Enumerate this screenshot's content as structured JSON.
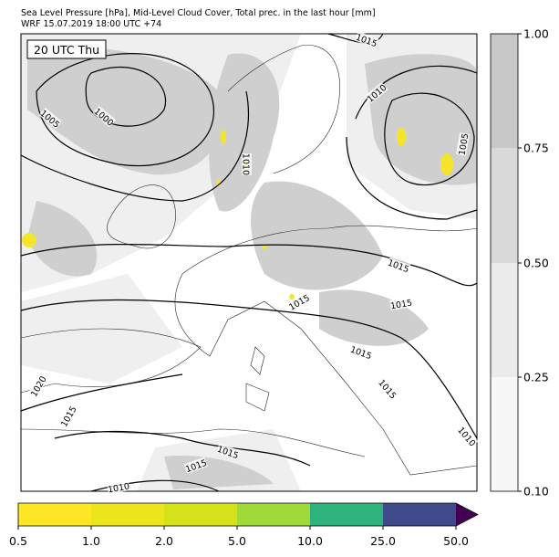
{
  "header": {
    "line1": "Sea Level Pressure [hPa], Mid-Level Cloud Cover, Total prec. in the last hour [mm]",
    "line2": "WRF 15.07.2019 18:00 UTC +74"
  },
  "map": {
    "time_label": "20 UTC Thu",
    "isobar_labels": [
      "1015",
      "1010",
      "1005",
      "1005",
      "1000",
      "1010",
      "1015",
      "1015",
      "1015",
      "1015",
      "1020",
      "1015",
      "1015",
      "1010",
      "1015",
      "1015",
      "1010"
    ]
  },
  "cloud_colorbar": {
    "ticks": [
      "1.00",
      "0.75",
      "0.50",
      "0.25",
      "0.10"
    ]
  },
  "precip_colorbar": {
    "ticks": [
      "0.5",
      "1.0",
      "2.0",
      "5.0",
      "10.0",
      "25.0",
      "50.0"
    ]
  }
}
